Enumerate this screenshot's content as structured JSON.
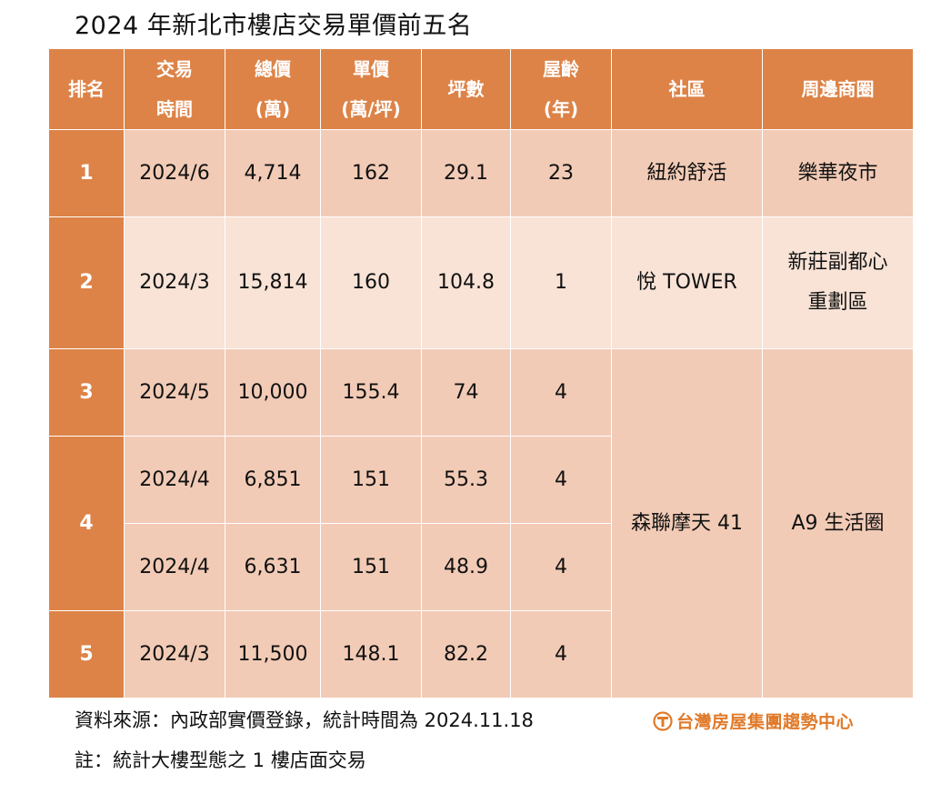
{
  "title": "2024 年新北市樓店交易單價前五名",
  "headers": [
    {
      "line1": "排名",
      "line2": ""
    },
    {
      "line1": "交易",
      "line2": "時間"
    },
    {
      "line1": "總價",
      "line2": "(萬)"
    },
    {
      "line1": "單價",
      "line2": "(萬/坪)"
    },
    {
      "line1": "坪數",
      "line2": ""
    },
    {
      "line1": "屋齡",
      "line2": "(年)"
    },
    {
      "line1": "社區",
      "line2": ""
    },
    {
      "line1": "周邊商圈",
      "line2": ""
    }
  ],
  "rows": [
    {
      "rank": "1",
      "date": "2024/6",
      "total": "4,714",
      "unit": "162",
      "ping": "29.1",
      "age": "23",
      "community": "紐約舒活",
      "area_line1": "樂華夜市",
      "area_line2": ""
    },
    {
      "rank": "2",
      "date": "2024/3",
      "total": "15,814",
      "unit": "160",
      "ping": "104.8",
      "age": "1",
      "community": "悅 TOWER",
      "area_line1": "新莊副都心",
      "area_line2": "重劃區"
    },
    {
      "rank": "3",
      "date": "2024/5",
      "total": "10,000",
      "unit": "155.4",
      "ping": "74",
      "age": "4"
    },
    {
      "rank": "4",
      "date": "2024/4",
      "total": "6,851",
      "unit": "151",
      "ping": "55.3",
      "age": "4"
    },
    {
      "rank": "",
      "date": "2024/4",
      "total": "6,631",
      "unit": "151",
      "ping": "48.9",
      "age": "4"
    },
    {
      "rank": "5",
      "date": "2024/3",
      "total": "11,500",
      "unit": "148.1",
      "ping": "82.2",
      "age": "4"
    }
  ],
  "merged": {
    "community": "森聯摩天 41",
    "area": "A9 生活圈"
  },
  "footer": {
    "source": "資料來源：內政部實價登錄，統計時間為 2024.11.18",
    "note": "註：統計大樓型態之 1 樓店面交易",
    "brand": "台灣房屋集團趨勢中心",
    "brand_icon": "taiwan-realty-logo-icon",
    "brand_color": "#e07a2a"
  },
  "colors": {
    "header": "#dd8347",
    "row_dark": "#f2cbb6",
    "row_light": "#f8e3d6"
  }
}
